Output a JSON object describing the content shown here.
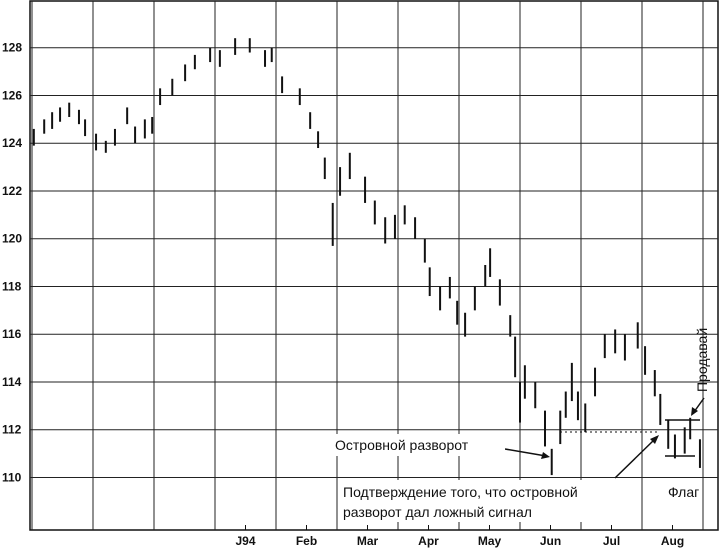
{
  "chart_data": {
    "type": "range_bar",
    "x": [
      0.03,
      0.2,
      0.33,
      0.46,
      0.61,
      0.77,
      0.87,
      1.05,
      1.21,
      1.36,
      1.56,
      1.69,
      1.85,
      1.97,
      2.1,
      2.3,
      2.51,
      2.67,
      2.92,
      3.08,
      3.33,
      3.57,
      3.82,
      3.93,
      4.1,
      4.39,
      4.56,
      4.69,
      4.8,
      4.93,
      5.05,
      5.21,
      5.46,
      5.62,
      5.79,
      5.95,
      6.11,
      6.28,
      6.44,
      6.52,
      6.69,
      6.85,
      6.97,
      7.1,
      7.26,
      7.43,
      7.51,
      7.67,
      7.84,
      7.92,
      8.0,
      8.08,
      8.25,
      8.41,
      8.52,
      8.66,
      8.75,
      8.85,
      8.95,
      9.07,
      9.23,
      9.39,
      9.56,
      9.72,
      9.93,
      10.05,
      10.21,
      10.3,
      10.43,
      10.54,
      10.7,
      10.79,
      10.95
    ],
    "low": [
      123.9,
      124.4,
      124.6,
      124.9,
      125.1,
      124.8,
      124.3,
      123.7,
      123.6,
      123.9,
      124.8,
      124.0,
      124.2,
      124.4,
      125.6,
      126.0,
      126.6,
      127.1,
      127.4,
      127.2,
      127.7,
      127.8,
      127.2,
      127.4,
      126.1,
      125.6,
      124.6,
      123.8,
      122.5,
      119.7,
      121.8,
      122.5,
      121.5,
      120.6,
      119.8,
      120.0,
      120.6,
      120.0,
      119.0,
      117.6,
      117.0,
      117.5,
      116.4,
      115.9,
      117.0,
      118.0,
      118.4,
      117.2,
      115.9,
      114.2,
      112.3,
      113.3,
      112.9,
      111.3,
      110.1,
      111.4,
      112.5,
      113.2,
      112.4,
      111.9,
      113.4,
      115.0,
      115.2,
      114.9,
      115.4,
      114.3,
      113.4,
      112.2,
      111.2,
      110.8,
      111.0,
      111.6,
      110.4
    ],
    "high": [
      124.6,
      125.0,
      125.3,
      125.5,
      125.7,
      125.4,
      125.0,
      124.4,
      124.1,
      124.6,
      125.5,
      124.7,
      125.0,
      125.1,
      126.3,
      126.7,
      127.3,
      127.7,
      128.0,
      127.9,
      128.4,
      128.4,
      127.9,
      128.0,
      126.8,
      126.3,
      125.3,
      124.5,
      123.4,
      121.5,
      123.0,
      123.6,
      122.6,
      121.6,
      120.9,
      121.0,
      121.4,
      120.9,
      120.0,
      118.8,
      118.0,
      118.4,
      117.4,
      116.9,
      118.0,
      118.9,
      119.6,
      118.3,
      116.8,
      115.9,
      114.0,
      114.7,
      114.0,
      112.8,
      111.2,
      112.8,
      113.6,
      114.8,
      113.6,
      113.1,
      114.6,
      116.0,
      116.2,
      116.0,
      116.5,
      115.5,
      114.5,
      113.5,
      112.4,
      111.8,
      112.1,
      112.5,
      111.6
    ],
    "color": "#111111",
    "xlim": [
      0,
      11.3
    ],
    "xgrid": [
      0,
      1,
      2,
      3,
      4,
      5,
      6,
      7,
      8,
      9,
      10,
      11
    ],
    "xticks": [
      {
        "value": 3.5,
        "label": "J94"
      },
      {
        "value": 4.5,
        "label": "Feb"
      },
      {
        "value": 5.5,
        "label": "Mar"
      },
      {
        "value": 6.5,
        "label": "Apr"
      },
      {
        "value": 7.5,
        "label": "May"
      },
      {
        "value": 8.5,
        "label": "Jun"
      },
      {
        "value": 9.5,
        "label": "Jul"
      },
      {
        "value": 10.5,
        "label": "Aug"
      }
    ],
    "ylim": [
      107.8,
      130
    ],
    "yticks": [
      110,
      112,
      114,
      116,
      118,
      120,
      122,
      124,
      126,
      128
    ],
    "grid": true,
    "annotations": {
      "island": "Островной разворот",
      "confirm": [
        "Подтверждение того, что островной",
        "разворот дал ложный сигнал"
      ],
      "sell": "Продавай",
      "flag": "Флаг"
    }
  }
}
